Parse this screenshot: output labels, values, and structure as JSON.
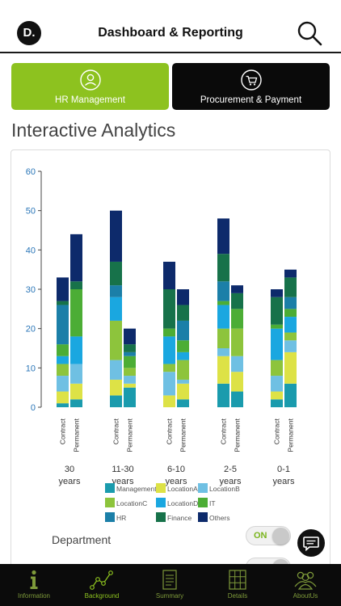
{
  "header": {
    "logo": "D.",
    "title": "Dashboard & Reporting",
    "search_icon": "search-icon"
  },
  "modules": [
    {
      "label": "HR Management",
      "icon": "person-icon",
      "color": "#8dc21f"
    },
    {
      "label": "Procurement & Payment",
      "icon": "cart-icon",
      "color": "#0a0a0a"
    }
  ],
  "section_title": "Interactive Analytics",
  "chart_data": {
    "type": "bar",
    "stacked": true,
    "ylim": [
      0,
      60
    ],
    "yticks": [
      "0",
      "10",
      "20",
      "30",
      "40",
      "50",
      "60"
    ],
    "groups": [
      {
        "label_line1": "30",
        "label_line2": "years"
      },
      {
        "label_line1": "11-30",
        "label_line2": "years"
      },
      {
        "label_line1": "6-10",
        "label_line2": "years"
      },
      {
        "label_line1": "2-5",
        "label_line2": "years"
      },
      {
        "label_line1": "0-1",
        "label_line2": "years"
      }
    ],
    "bar_labels": [
      "Contract",
      "Permanent"
    ],
    "series": [
      {
        "name": "Management",
        "color": "#1a9bad"
      },
      {
        "name": "LocationA",
        "color": "#dde246"
      },
      {
        "name": "LocationB",
        "color": "#6fc0e3"
      },
      {
        "name": "LocationC",
        "color": "#8dc43c"
      },
      {
        "name": "LocationD",
        "color": "#1aa7e0"
      },
      {
        "name": "IT",
        "color": "#4cad35"
      },
      {
        "name": "HR",
        "color": "#1b7fa8"
      },
      {
        "name": "Finance",
        "color": "#17724a"
      },
      {
        "name": "Others",
        "color": "#0d2a6b"
      }
    ],
    "bars": [
      {
        "group": 0,
        "type": "Contract",
        "values": [
          1,
          3,
          4,
          3,
          2,
          3,
          10,
          1,
          6
        ]
      },
      {
        "group": 0,
        "type": "Permanent",
        "values": [
          2,
          4,
          5,
          0,
          7,
          12,
          0,
          2,
          12
        ]
      },
      {
        "group": 1,
        "type": "Contract",
        "values": [
          3,
          4,
          5,
          10,
          6,
          0,
          3,
          6,
          13
        ]
      },
      {
        "group": 1,
        "type": "Permanent",
        "values": [
          5,
          1,
          2,
          2,
          0,
          3,
          1,
          2,
          4
        ]
      },
      {
        "group": 2,
        "type": "Contract",
        "values": [
          0,
          3,
          6,
          2,
          7,
          2,
          0,
          10,
          7
        ]
      },
      {
        "group": 2,
        "type": "Permanent",
        "values": [
          2,
          4,
          1,
          5,
          2,
          3,
          5,
          4,
          4
        ]
      },
      {
        "group": 3,
        "type": "Contract",
        "values": [
          6,
          7,
          2,
          5,
          6,
          1,
          5,
          7,
          9
        ]
      },
      {
        "group": 3,
        "type": "Permanent",
        "values": [
          4,
          5,
          4,
          7,
          0,
          5,
          0,
          4,
          2
        ]
      },
      {
        "group": 4,
        "type": "Contract",
        "values": [
          2,
          2,
          4,
          4,
          8,
          1,
          0,
          7,
          2
        ]
      },
      {
        "group": 4,
        "type": "Permanent",
        "values": [
          6,
          8,
          3,
          2,
          4,
          2,
          3,
          5,
          2
        ]
      }
    ]
  },
  "filters": {
    "department_label": "Department",
    "department_toggle": "ON",
    "second_toggle": ""
  },
  "chat_icon": "chat-bubble-icon",
  "tabs": [
    {
      "label": "Information",
      "icon": "info-icon",
      "active": false
    },
    {
      "label": "Background",
      "icon": "line-graph-icon",
      "active": true
    },
    {
      "label": "Summary",
      "icon": "document-icon",
      "active": false
    },
    {
      "label": "Details",
      "icon": "grid-icon",
      "active": false
    },
    {
      "label": "AboutUs",
      "icon": "people-icon",
      "active": false
    }
  ]
}
